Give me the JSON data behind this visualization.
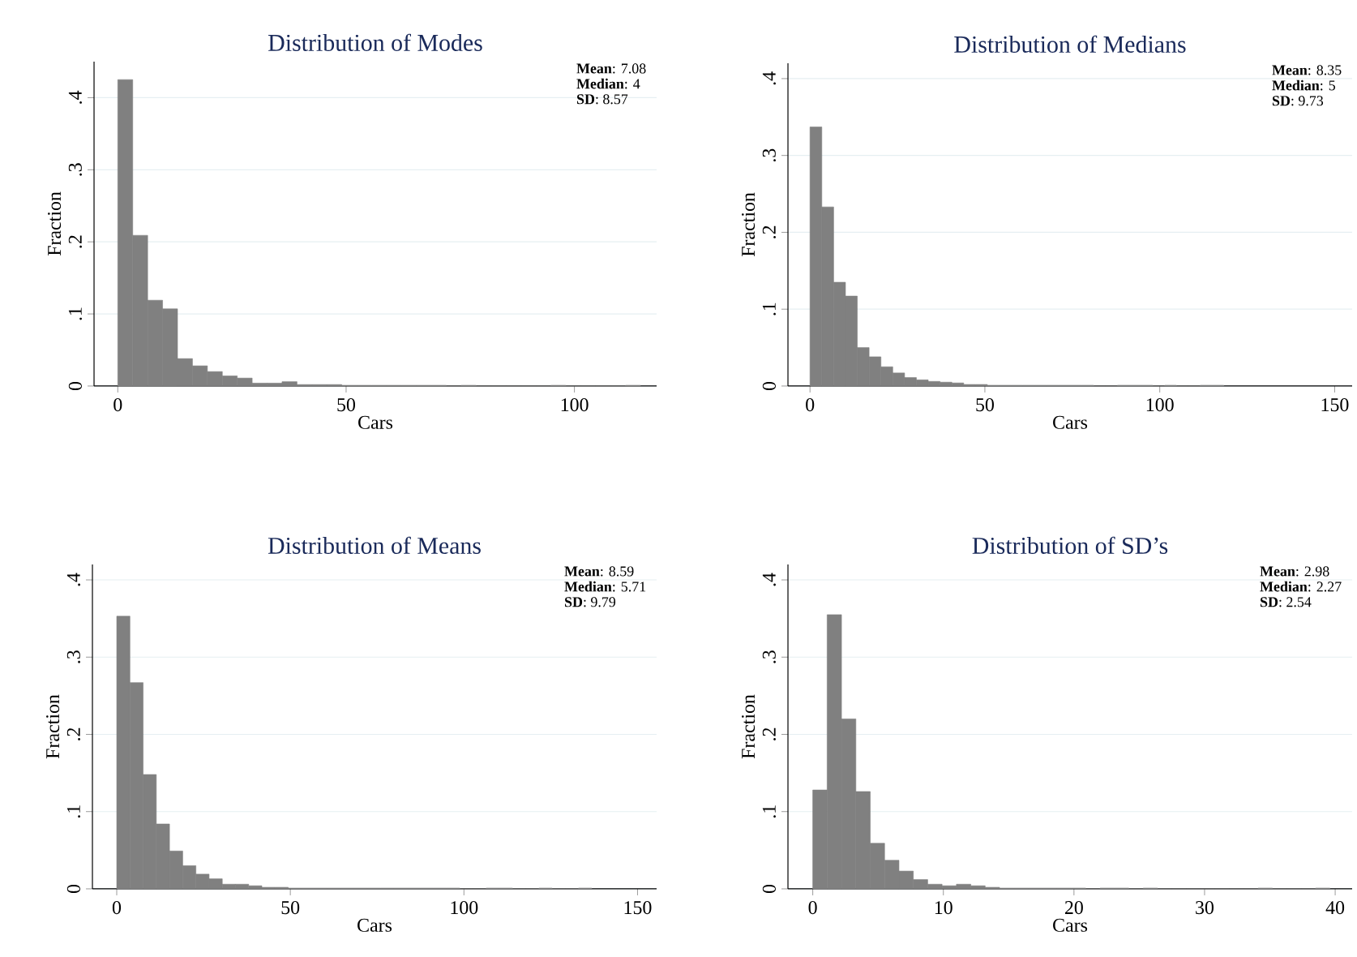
{
  "chart_data": [
    {
      "type": "histogram",
      "title": "Distribution of Modes",
      "xlabel": "Cars",
      "ylabel": "Fraction",
      "color": "#808080",
      "grid": "y",
      "bins": [
        0,
        3.27,
        6.54,
        9.81,
        13.08,
        16.35,
        19.62,
        22.89,
        26.16,
        29.43,
        32.7,
        35.97,
        39.24,
        42.51,
        45.78,
        49.05,
        52.32,
        55.59,
        58.86,
        62.13,
        65.4,
        68.67,
        71.94,
        75.21,
        78.48,
        81.75,
        85.02,
        88.29,
        91.56,
        94.83,
        98.1,
        101.37,
        104.64,
        107.91,
        111.18,
        114.45
      ],
      "values": [
        0.425,
        0.209,
        0.119,
        0.107,
        0.038,
        0.028,
        0.02,
        0.014,
        0.011,
        0.004,
        0.004,
        0.006,
        0.002,
        0.002,
        0.002,
        0.001,
        0.001,
        0.001,
        0.001,
        0.001,
        0.001,
        0.001,
        0,
        0.001,
        0,
        0,
        0,
        0,
        0,
        0.001,
        0,
        0,
        0,
        0,
        0.001
      ],
      "xlim": [
        -5.2,
        118
      ],
      "ylim": [
        0,
        0.45
      ],
      "xticks": [
        0,
        50,
        100
      ],
      "yticks": [
        0,
        {
          "value": 0.1,
          "label": ".1"
        },
        {
          "value": 0.2,
          "label": ".2"
        },
        {
          "value": 0.3,
          "label": ".3"
        },
        {
          "value": 0.4,
          "label": ".4"
        }
      ],
      "annotations": [
        "**Mean**: 7.08",
        "**Median**: 4",
        "**SD**: 8.57"
      ]
    },
    {
      "type": "histogram",
      "title": "Distribution of Medians",
      "xlabel": "Cars",
      "ylabel": "Fraction",
      "color": "#808080",
      "grid": "y",
      "bins": [
        0,
        3.38,
        6.76,
        10.14,
        13.52,
        16.9,
        20.28,
        23.66,
        27.04,
        30.42,
        33.8,
        37.18,
        40.56,
        43.94,
        47.32,
        50.7,
        54.08,
        57.46,
        60.84,
        64.22,
        67.6,
        70.98,
        74.36,
        77.74,
        81.12,
        84.5,
        87.88,
        91.26,
        94.64,
        98.02,
        101.4,
        104.78,
        108.16,
        111.54,
        114.92,
        118.3
      ],
      "values": [
        0.337,
        0.233,
        0.135,
        0.117,
        0.05,
        0.038,
        0.025,
        0.017,
        0.011,
        0.008,
        0.006,
        0.005,
        0.004,
        0.002,
        0.002,
        0.001,
        0.001,
        0.001,
        0.001,
        0.001,
        0.001,
        0.001,
        0.001,
        0.001,
        0,
        0,
        0.001,
        0.001,
        0.001,
        0,
        0.001,
        0,
        0,
        0.001,
        0.001
      ],
      "xlim": [
        -6.3,
        155
      ],
      "ylim": [
        0,
        0.42
      ],
      "xticks": [
        0,
        50,
        100,
        150
      ],
      "yticks": [
        0,
        {
          "value": 0.1,
          "label": ".1"
        },
        {
          "value": 0.2,
          "label": ".2"
        },
        {
          "value": 0.3,
          "label": ".3"
        },
        {
          "value": 0.4,
          "label": ".4"
        }
      ],
      "annotations": [
        "**Mean**: 8.35",
        "**Median**: 5",
        "**SD**: 9.73"
      ]
    },
    {
      "type": "histogram",
      "title": "Distribution of Means",
      "xlabel": "Cars",
      "ylabel": "Fraction",
      "color": "#808080",
      "grid": "y",
      "bins": [
        0,
        3.8,
        7.6,
        11.4,
        15.2,
        19,
        22.8,
        26.6,
        30.4,
        34.2,
        38,
        41.8,
        45.6,
        49.4,
        53.2,
        57,
        60.8,
        64.6,
        68.4,
        72.2,
        76,
        79.8,
        83.6,
        87.4,
        91.2,
        95,
        98.8,
        102.6,
        106.4,
        110.2,
        114,
        117.8,
        121.6,
        125.4,
        129.2,
        133,
        136.8
      ],
      "values": [
        0.353,
        0.267,
        0.148,
        0.084,
        0.049,
        0.03,
        0.019,
        0.013,
        0.006,
        0.006,
        0.004,
        0.002,
        0.002,
        0.001,
        0.001,
        0.001,
        0.001,
        0.001,
        0.001,
        0.001,
        0.001,
        0.001,
        0.001,
        0.001,
        0.001,
        0.001,
        0,
        0,
        0.001,
        0.001,
        0,
        0,
        0.001,
        0,
        0,
        0.001
      ],
      "xlim": [
        -7,
        155.5
      ],
      "ylim": [
        0,
        0.42
      ],
      "xticks": [
        0,
        50,
        100,
        150
      ],
      "yticks": [
        0,
        {
          "value": 0.1,
          "label": ".1"
        },
        {
          "value": 0.2,
          "label": ".2"
        },
        {
          "value": 0.3,
          "label": ".3"
        },
        {
          "value": 0.4,
          "label": ".4"
        }
      ],
      "annotations": [
        "**Mean**: 8.59",
        "**Median**: 5.71",
        "**SD**: 9.79"
      ]
    },
    {
      "type": "histogram",
      "title": "Distribution of SD’s",
      "xlabel": "Cars",
      "ylabel": "Fraction",
      "color": "#808080",
      "grid": "y",
      "bins": [
        0,
        1.1,
        2.2,
        3.3,
        4.4,
        5.5,
        6.6,
        7.7,
        8.8,
        9.9,
        11,
        12.1,
        13.2,
        14.3,
        15.4,
        16.5,
        17.6,
        18.7,
        19.8,
        20.9,
        22,
        23.1,
        24.2,
        25.3,
        26.4,
        27.5,
        28.6,
        29.7,
        30.8,
        31.9,
        33,
        34.1,
        35.2,
        36.3,
        37.4,
        38.5,
        39.6
      ],
      "values": [
        0.128,
        0.355,
        0.22,
        0.126,
        0.059,
        0.037,
        0.023,
        0.012,
        0.006,
        0.004,
        0.006,
        0.004,
        0.002,
        0.001,
        0.001,
        0.001,
        0.001,
        0.001,
        0.001,
        0,
        0.001,
        0.001,
        0,
        0.001,
        0,
        0,
        0,
        0,
        0,
        0,
        0,
        0.001,
        0,
        0,
        0,
        0.001
      ],
      "xlim": [
        -1.9,
        41.3
      ],
      "ylim": [
        0,
        0.42
      ],
      "xticks": [
        0,
        10,
        20,
        30,
        40
      ],
      "yticks": [
        0,
        {
          "value": 0.1,
          "label": ".1"
        },
        {
          "value": 0.2,
          "label": ".2"
        },
        {
          "value": 0.3,
          "label": ".3"
        },
        {
          "value": 0.4,
          "label": ".4"
        }
      ],
      "annotations": [
        "**Mean**: 2.98",
        "**Median**: 2.27",
        "**SD**: 2.54"
      ]
    }
  ]
}
